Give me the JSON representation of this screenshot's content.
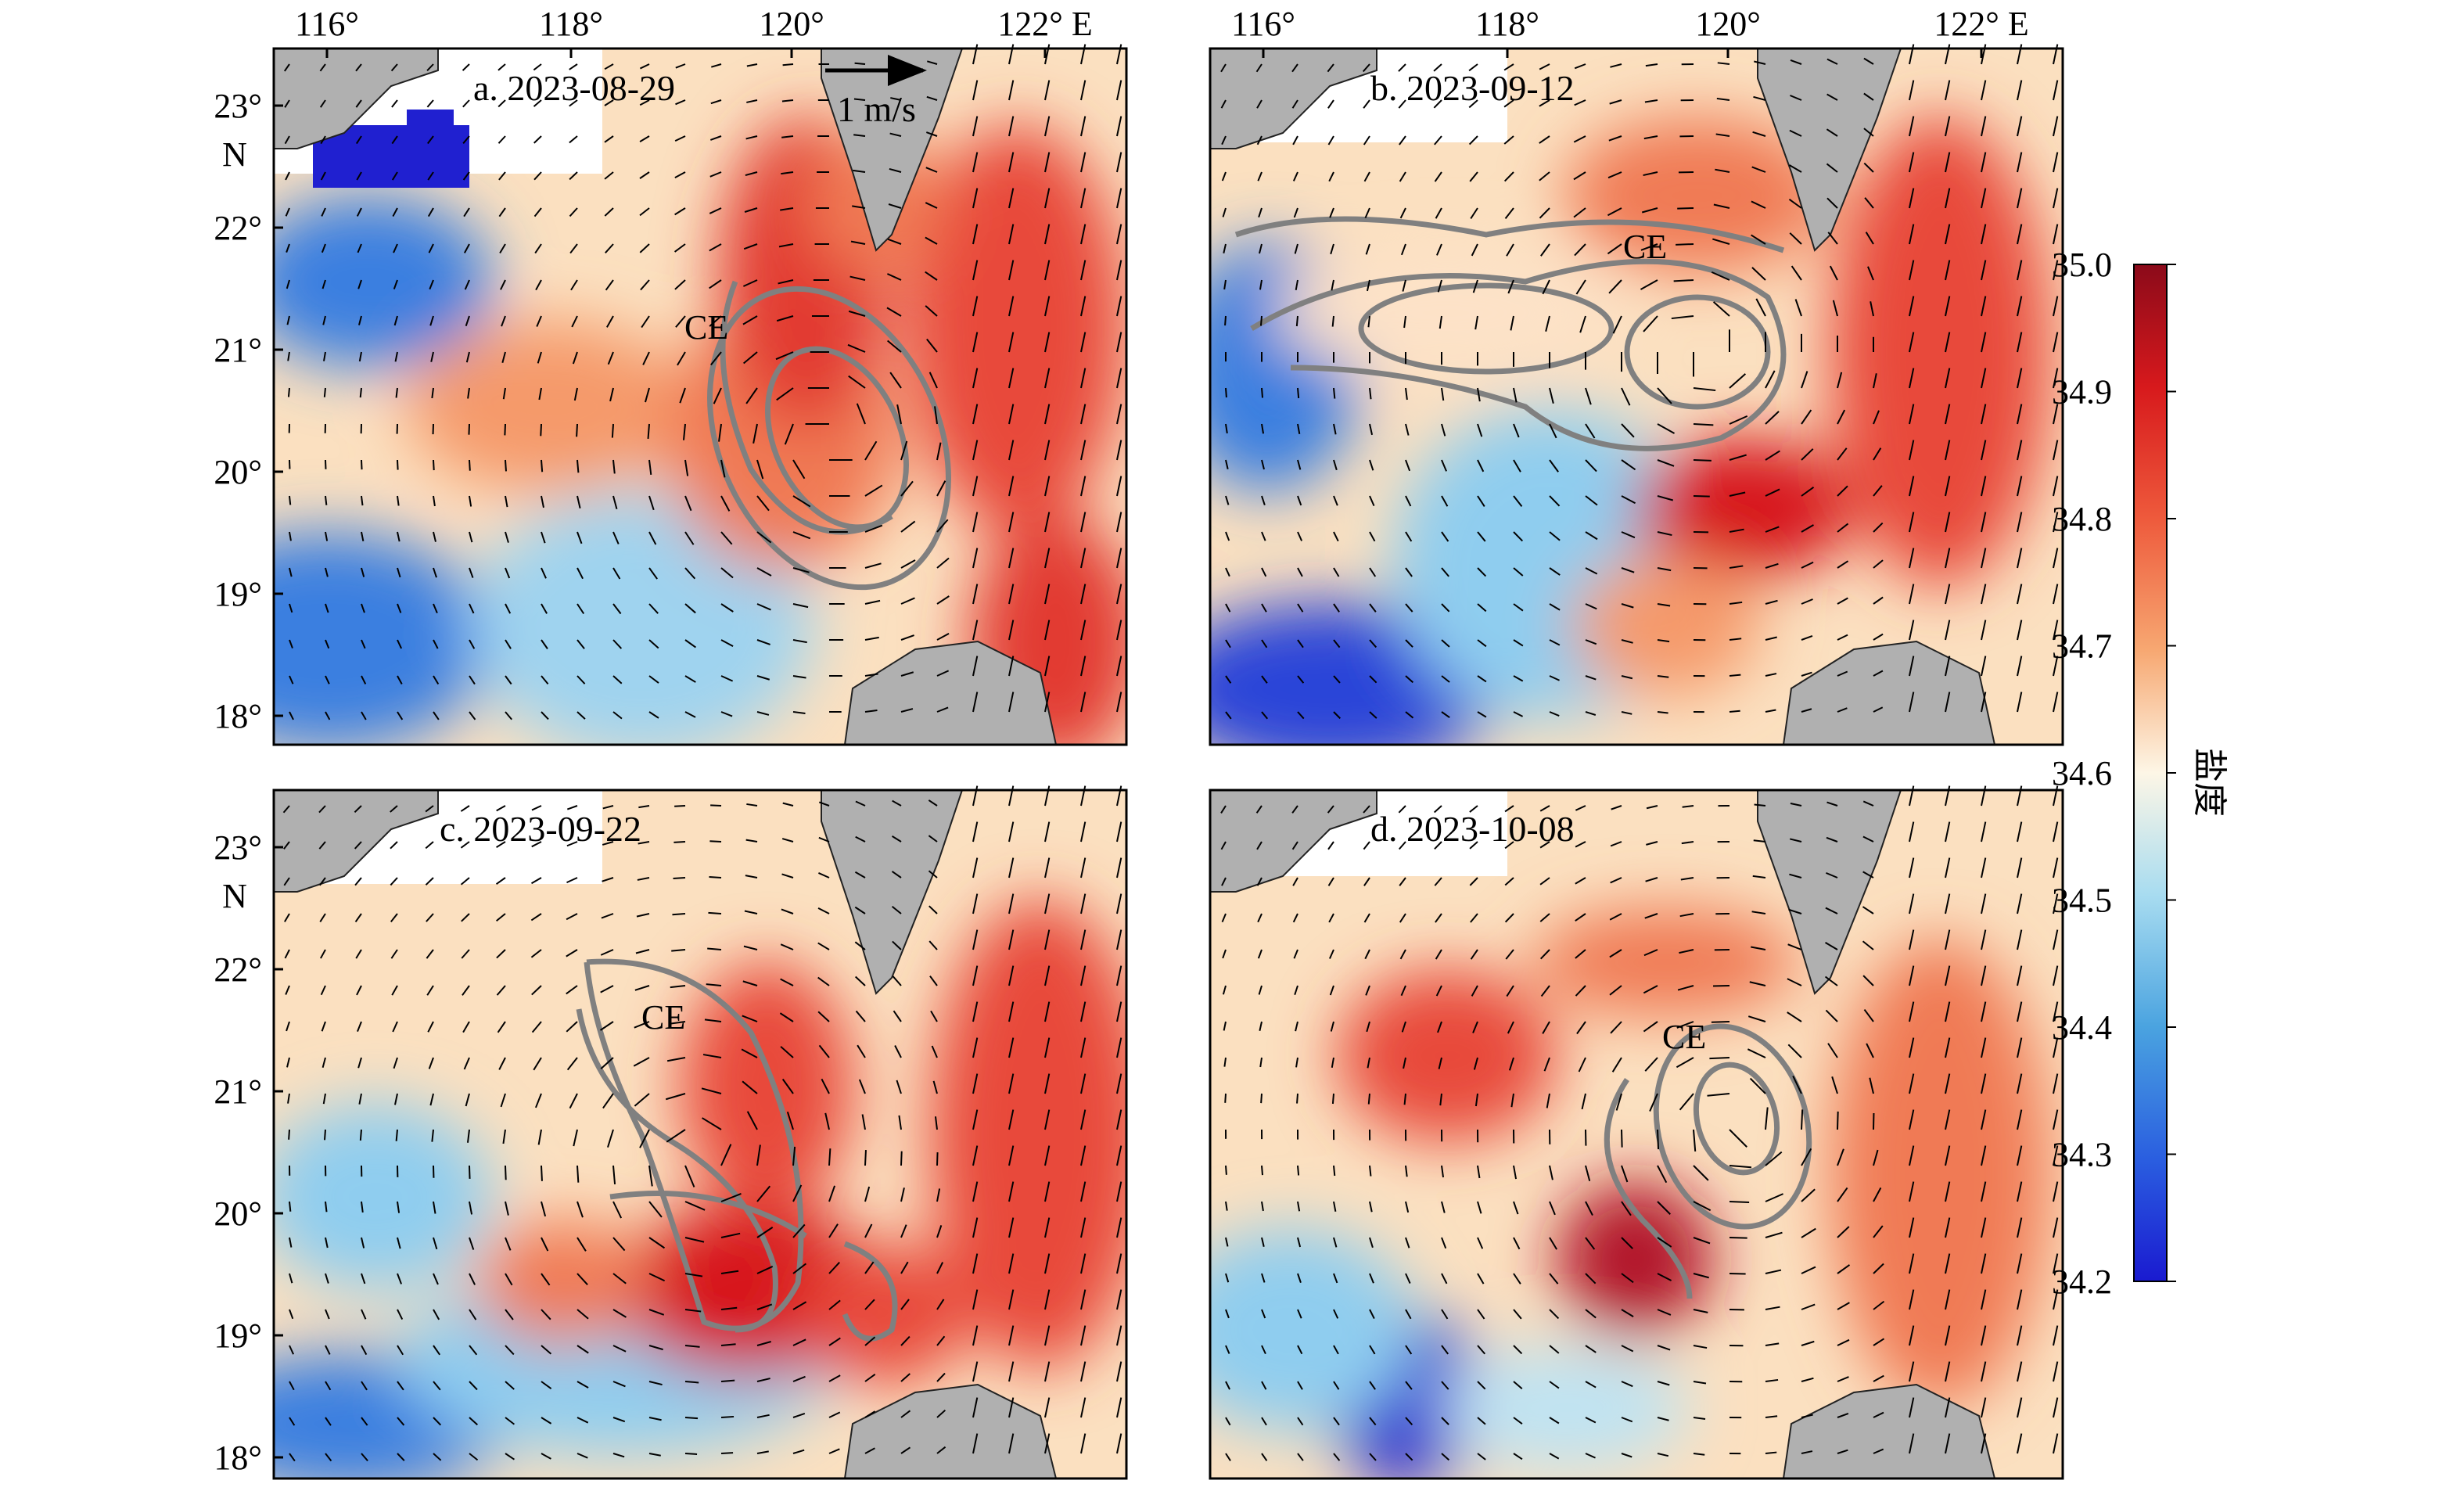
{
  "figure": {
    "panels": [
      {
        "label": "a. 2023-08-29",
        "eddy": "CE"
      },
      {
        "label": "b. 2023-09-12",
        "eddy": "CE"
      },
      {
        "label": "c. 2023-09-22",
        "eddy": "CE"
      },
      {
        "label": "d. 2023-10-08",
        "eddy": "CE"
      }
    ],
    "lon_ticks": [
      "116°",
      "118°",
      "120°",
      "122° E"
    ],
    "lat_ticks": [
      "23°",
      "22°",
      "21°",
      "20°",
      "19°",
      "18°"
    ],
    "lat_unit": "N",
    "scale_arrow_label": "1 m/s",
    "colorbar": {
      "title": "盐度",
      "ticks": [
        "35.0",
        "34.9",
        "34.8",
        "34.7",
        "34.6",
        "34.5",
        "34.4",
        "34.3",
        "34.2"
      ],
      "min": 34.2,
      "max": 35.0
    },
    "colors": {
      "land": "#b0b0b0",
      "high_salinity": "#b2182b",
      "low_salinity": "#2b3bd6",
      "mid_salinity": "#fdf6e6",
      "eddy_contour": "#808080",
      "vector": "#000000"
    },
    "map_extent": {
      "lon": [
        115.5,
        122.5
      ],
      "lat": [
        17.8,
        23.5
      ]
    }
  }
}
